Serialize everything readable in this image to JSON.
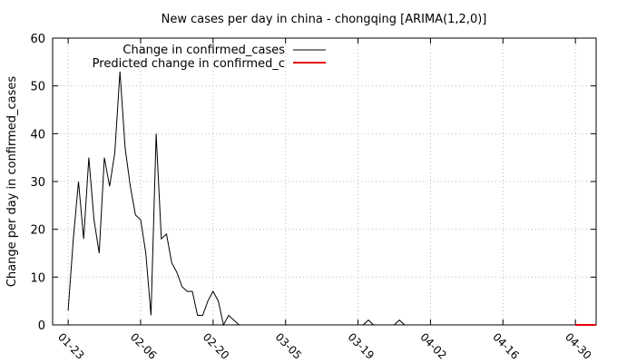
{
  "chart_data": {
    "type": "line",
    "title": "New cases per day in china - chongqing [ARIMA(1,2,0)]",
    "xlabel": "",
    "ylabel": "Change per day in confirmed_cases",
    "xlim": [
      "2020-01-20",
      "2020-05-04"
    ],
    "ylim": [
      0,
      60
    ],
    "yticks": [
      0,
      10,
      20,
      30,
      40,
      50,
      60
    ],
    "xticks": [
      "01-23",
      "02-06",
      "02-20",
      "03-05",
      "03-19",
      "04-02",
      "04-16",
      "04-30"
    ],
    "xtick_dates": [
      "2020-01-23",
      "2020-02-06",
      "2020-02-20",
      "2020-03-05",
      "2020-03-19",
      "2020-04-02",
      "2020-04-16",
      "2020-04-30"
    ],
    "grid": true,
    "legend_position": "top-left",
    "series": [
      {
        "name": "Change in confirmed_cases",
        "color": "#000000",
        "x": [
          "2020-01-23",
          "2020-01-24",
          "2020-01-25",
          "2020-01-26",
          "2020-01-27",
          "2020-01-28",
          "2020-01-29",
          "2020-01-30",
          "2020-01-31",
          "2020-02-01",
          "2020-02-02",
          "2020-02-03",
          "2020-02-04",
          "2020-02-05",
          "2020-02-06",
          "2020-02-07",
          "2020-02-08",
          "2020-02-09",
          "2020-02-10",
          "2020-02-11",
          "2020-02-12",
          "2020-02-13",
          "2020-02-14",
          "2020-02-15",
          "2020-02-16",
          "2020-02-17",
          "2020-02-18",
          "2020-02-19",
          "2020-02-20",
          "2020-02-21",
          "2020-02-22",
          "2020-02-23",
          "2020-02-24",
          "2020-02-25",
          "2020-02-26",
          "2020-03-20",
          "2020-03-21",
          "2020-03-22",
          "2020-03-26",
          "2020-03-27",
          "2020-03-28"
        ],
        "y": [
          3,
          18,
          30,
          18,
          35,
          22,
          15,
          35,
          29,
          36,
          53,
          37,
          29,
          23,
          22,
          15,
          2,
          40,
          18,
          19,
          13,
          11,
          8,
          7,
          7,
          2,
          2,
          5,
          7,
          5,
          0,
          2,
          1,
          0,
          0,
          0,
          1,
          0,
          0,
          1,
          0
        ]
      },
      {
        "name": "Predicted change in confirmed_c",
        "color": "#e8000b",
        "x": [
          "2020-04-30",
          "2020-05-01",
          "2020-05-02",
          "2020-05-03",
          "2020-05-04"
        ],
        "y": [
          0,
          0,
          0,
          0,
          0
        ]
      }
    ]
  }
}
